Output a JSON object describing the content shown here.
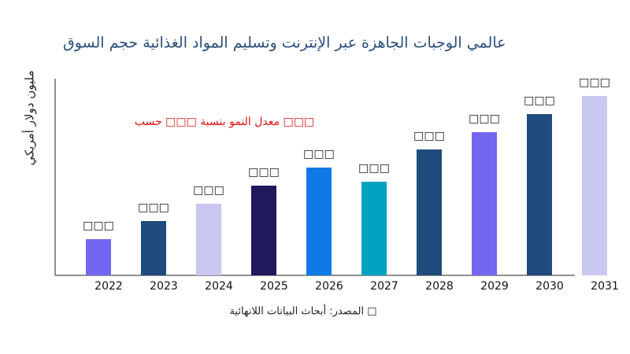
{
  "chart_data": {
    "type": "bar",
    "title": "عالمي الوجبات الجاهزة عبر الإنترنت وتسليم المواد الغذائية حجم السوق",
    "y_label": "مليون دولار أمريكي",
    "annotation": "معدل النمو بنسبة □□□ حسب □□□",
    "source": "المصدر: أبحاث البيانات اللانهائية □",
    "categories": [
      "2022",
      "2023",
      "2024",
      "2025",
      "2026",
      "2027",
      "2028",
      "2029",
      "2030",
      "2031"
    ],
    "values": [
      46,
      69,
      91,
      114,
      137,
      119,
      160,
      182,
      205,
      228
    ],
    "value_labels": [
      "□□□",
      "□□□",
      "□□□",
      "□□□",
      "□□□",
      "□□□",
      "□□□",
      "□□□",
      "□□□",
      "□□□"
    ],
    "colors": [
      "#7366f0",
      "#1f4b7e",
      "#c8c8f0",
      "#1f1a5c",
      "#0f7ae5",
      "#00a3bf",
      "#1f4b7e",
      "#7366f0",
      "#1f4b7e",
      "#c8c8f0"
    ],
    "ylim": [
      0,
      250
    ]
  }
}
